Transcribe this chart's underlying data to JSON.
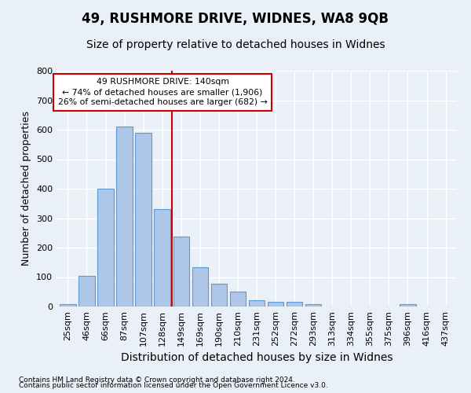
{
  "title": "49, RUSHMORE DRIVE, WIDNES, WA8 9QB",
  "subtitle": "Size of property relative to detached houses in Widnes",
  "xlabel": "Distribution of detached houses by size in Widnes",
  "ylabel": "Number of detached properties",
  "footer1": "Contains HM Land Registry data © Crown copyright and database right 2024.",
  "footer2": "Contains public sector information licensed under the Open Government Licence v3.0.",
  "categories": [
    "25sqm",
    "46sqm",
    "66sqm",
    "87sqm",
    "107sqm",
    "128sqm",
    "149sqm",
    "169sqm",
    "190sqm",
    "210sqm",
    "231sqm",
    "252sqm",
    "272sqm",
    "293sqm",
    "313sqm",
    "334sqm",
    "355sqm",
    "375sqm",
    "396sqm",
    "416sqm",
    "437sqm"
  ],
  "values": [
    8,
    105,
    400,
    610,
    590,
    330,
    237,
    133,
    77,
    50,
    22,
    15,
    15,
    8,
    0,
    0,
    0,
    0,
    8,
    0,
    0
  ],
  "bar_color": "#aec6e8",
  "bar_edge_color": "#5b9bd5",
  "annotation_text": "49 RUSHMORE DRIVE: 140sqm\n← 74% of detached houses are smaller (1,906)\n26% of semi-detached houses are larger (682) →",
  "vline_x_index": 5.5,
  "vline_color": "#cc0000",
  "box_color": "#cc0000",
  "ylim": [
    0,
    800
  ],
  "yticks": [
    0,
    100,
    200,
    300,
    400,
    500,
    600,
    700,
    800
  ],
  "bg_color": "#eaf0f8",
  "grid_color": "#ffffff",
  "title_fontsize": 12,
  "subtitle_fontsize": 10,
  "axis_label_fontsize": 9,
  "tick_fontsize": 8,
  "footer_fontsize": 6.5
}
